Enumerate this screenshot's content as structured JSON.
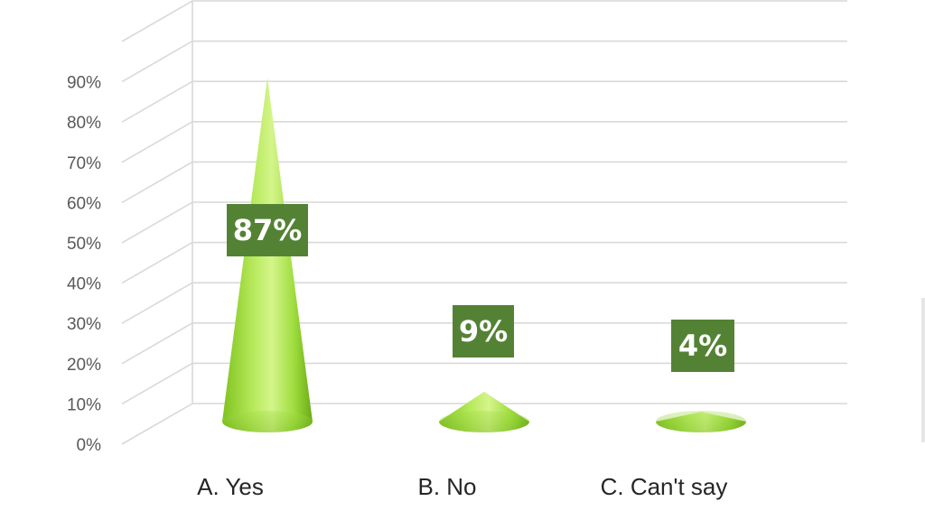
{
  "chart_data": {
    "type": "bar",
    "bar_shape": "cone",
    "categories": [
      "A. Yes",
      "B. No",
      "C. Can't say"
    ],
    "values": [
      87,
      9,
      4
    ],
    "data_labels": [
      "87%",
      "9%",
      "4%"
    ],
    "yticks": [
      "0%",
      "10%",
      "20%",
      "30%",
      "40%",
      "50%",
      "60%",
      "70%",
      "80%",
      "90%"
    ],
    "ylim": [
      0,
      100
    ],
    "unit": "%",
    "title": "",
    "xlabel": "",
    "ylabel": "",
    "grid": true,
    "legend": "none",
    "colors": {
      "cone_light": "#d4f58a",
      "cone_mid": "#9ddc3c",
      "cone_dark": "#5a9a12",
      "label_bg": "#548235",
      "label_text": "#ffffff",
      "grid": "#d9d9d9",
      "tick_text": "#595959",
      "category_text": "#262626"
    }
  }
}
